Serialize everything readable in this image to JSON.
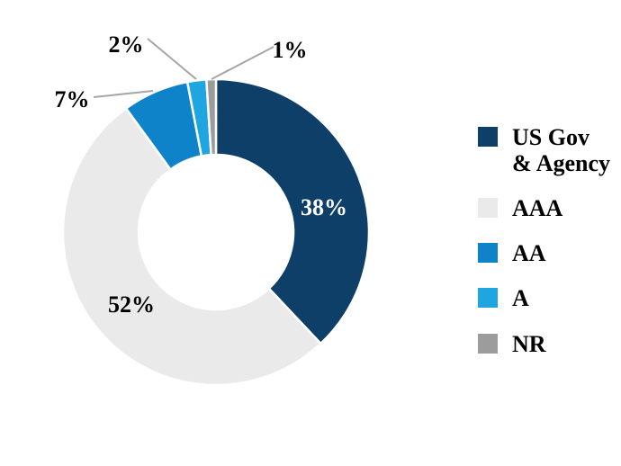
{
  "chart_data": {
    "type": "pie",
    "subtype": "donut",
    "title": "",
    "categories": [
      "US Gov & Agency",
      "AAA",
      "AA",
      "A",
      "NR"
    ],
    "values": [
      38,
      52,
      7,
      2,
      1
    ],
    "unit": "%",
    "slice_labels": [
      "38%",
      "52%",
      "7%",
      "2%",
      "1%"
    ],
    "colors": [
      "#0E3F68",
      "#EAEAEA",
      "#0E83CA",
      "#1FA5E0",
      "#9C9C9C"
    ],
    "hole_ratio": 0.5,
    "start_angle_deg": 0,
    "direction": "clockwise",
    "legend_position": "right",
    "grid": false,
    "leader_line_color": "#A6A6A6",
    "slice_border_color": "#FFFFFF"
  },
  "legend": {
    "items": [
      {
        "label": "US Gov\n& Agency",
        "color": "#0E3F68"
      },
      {
        "label": "AAA",
        "color": "#EAEAEA"
      },
      {
        "label": "AA",
        "color": "#0E83CA"
      },
      {
        "label": "A",
        "color": "#1FA5E0"
      },
      {
        "label": "NR",
        "color": "#9C9C9C"
      }
    ]
  }
}
